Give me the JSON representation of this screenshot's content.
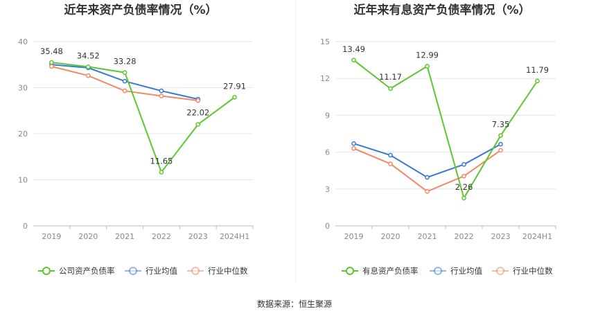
{
  "source_label": "数据来源：恒生聚源",
  "chart_data": [
    {
      "type": "line",
      "title": "近年来资产负债率情况（%）",
      "categories": [
        "2019",
        "2020",
        "2021",
        "2022",
        "2023",
        "2024H1"
      ],
      "ylim": [
        0,
        40
      ],
      "yticks": [
        0,
        10,
        20,
        30,
        40
      ],
      "grid": true,
      "legend_position": "bottom",
      "series": [
        {
          "name": "公司资产负债率",
          "color": "#5cc72f",
          "values": [
            35.48,
            34.52,
            33.28,
            11.65,
            22.02,
            27.91
          ],
          "labels": [
            "35.48",
            "34.52",
            "33.28",
            "11.65",
            "22.02",
            "27.91"
          ]
        },
        {
          "name": "行业均值",
          "color": "#3a78d8",
          "values": [
            35.0,
            34.3,
            31.4,
            29.3,
            27.5,
            null
          ]
        },
        {
          "name": "行业中位数",
          "color": "#f08a62",
          "values": [
            34.6,
            32.6,
            29.3,
            28.2,
            27.2,
            null
          ]
        }
      ]
    },
    {
      "type": "line",
      "title": "近年来有息资产负债率情况（%）",
      "categories": [
        "2019",
        "2020",
        "2021",
        "2022",
        "2023",
        "2024H1"
      ],
      "ylim": [
        0,
        15
      ],
      "yticks": [
        0,
        3,
        6,
        9,
        12,
        15
      ],
      "grid": true,
      "legend_position": "bottom",
      "series": [
        {
          "name": "有息资产负债率",
          "color": "#5cc72f",
          "values": [
            13.49,
            11.17,
            12.99,
            2.26,
            7.35,
            11.79
          ],
          "labels": [
            "13.49",
            "11.17",
            "12.99",
            "2.26",
            "7.35",
            "11.79"
          ]
        },
        {
          "name": "行业均值",
          "color": "#3a78d8",
          "values": [
            6.7,
            5.75,
            3.95,
            5.0,
            6.65,
            null
          ]
        },
        {
          "name": "行业中位数",
          "color": "#f08a62",
          "values": [
            6.3,
            5.05,
            2.8,
            4.05,
            6.15,
            null
          ]
        }
      ]
    }
  ]
}
